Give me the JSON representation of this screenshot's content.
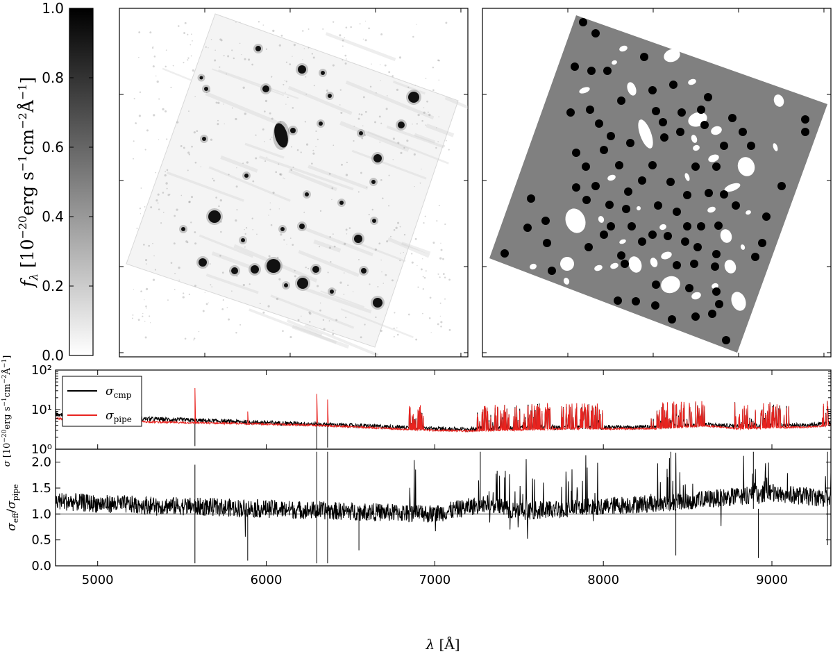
{
  "colorbar": {
    "label_html": "fλ [10⁻²⁰erg s⁻¹cm⁻²Å⁻¹]",
    "ticks": [
      "0.0",
      "0.2",
      "0.4",
      "0.6",
      "0.8",
      "1.0"
    ],
    "range": [
      0.0,
      1.0
    ],
    "colormap": "gray_r"
  },
  "panels": {
    "left_image": {
      "description_type": "flux map",
      "colormap": "gray_r"
    },
    "right_image": {
      "description_type": "mask",
      "colors": {
        "background": "#ffffff",
        "field": "#808080",
        "sky": "#000000",
        "source": "#ffffff"
      }
    }
  },
  "chart_data": [
    {
      "type": "line",
      "name": "sigma-panel",
      "ylabel": "σ [10⁻²⁰erg s⁻¹cm⁻²Å⁻¹]",
      "yscale": "log",
      "ylim": [
        1,
        100
      ],
      "xlim": [
        4750,
        9350
      ],
      "yticks": [
        "10⁰",
        "10¹",
        "10²"
      ],
      "legend": {
        "placement": "top-left",
        "entries": [
          {
            "label": "σcmp",
            "color": "#000000"
          },
          {
            "label": "σpipe",
            "color": "#e8231f"
          }
        ]
      },
      "series": [
        {
          "name": "σcmp",
          "color": "#000000",
          "x": [
            4750,
            5000,
            5200,
            5500,
            5800,
            6000,
            6300,
            6500,
            6800,
            7000,
            7200,
            7500,
            7800,
            8000,
            8300,
            8600,
            8800,
            9000,
            9200,
            9350
          ],
          "y": [
            7.5,
            6.5,
            6.0,
            5.5,
            5.0,
            4.7,
            4.3,
            4.0,
            3.6,
            3.3,
            3.2,
            3.5,
            3.6,
            3.6,
            3.6,
            4.2,
            3.8,
            4.0,
            4.1,
            4.5
          ]
        },
        {
          "name": "σpipe",
          "color": "#e8231f",
          "x": [
            4750,
            5000,
            5200,
            5500,
            5800,
            6000,
            6300,
            6500,
            6800,
            7000,
            7200,
            7500,
            7800,
            8000,
            8300,
            8600,
            8800,
            9000,
            9200,
            9350
          ],
          "y": [
            6.0,
            5.3,
            5.0,
            4.7,
            4.5,
            4.3,
            4.0,
            3.7,
            3.2,
            3.0,
            2.9,
            3.1,
            3.3,
            3.3,
            3.3,
            3.9,
            3.3,
            3.5,
            3.6,
            4.0
          ]
        }
      ]
    },
    {
      "type": "line",
      "name": "ratio-panel",
      "ylabel": "σeff/σpipe",
      "xlabel": "λ [Å]",
      "ylim": [
        0.0,
        2.25
      ],
      "xlim": [
        4750,
        9350
      ],
      "xticks": [
        "5000",
        "6000",
        "7000",
        "8000",
        "9000"
      ],
      "yticks": [
        "0.0",
        "0.5",
        "1.0",
        "1.5",
        "2.0"
      ],
      "reference_line": 1.0,
      "series": [
        {
          "name": "",
          "color": "#000000",
          "x": [
            4750,
            5000,
            5500,
            6000,
            6500,
            7000,
            7300,
            7500,
            8000,
            8500,
            9000,
            9350
          ],
          "y": [
            1.25,
            1.2,
            1.15,
            1.1,
            1.05,
            1.0,
            1.2,
            1.05,
            1.15,
            1.25,
            1.4,
            1.3
          ]
        }
      ]
    }
  ]
}
